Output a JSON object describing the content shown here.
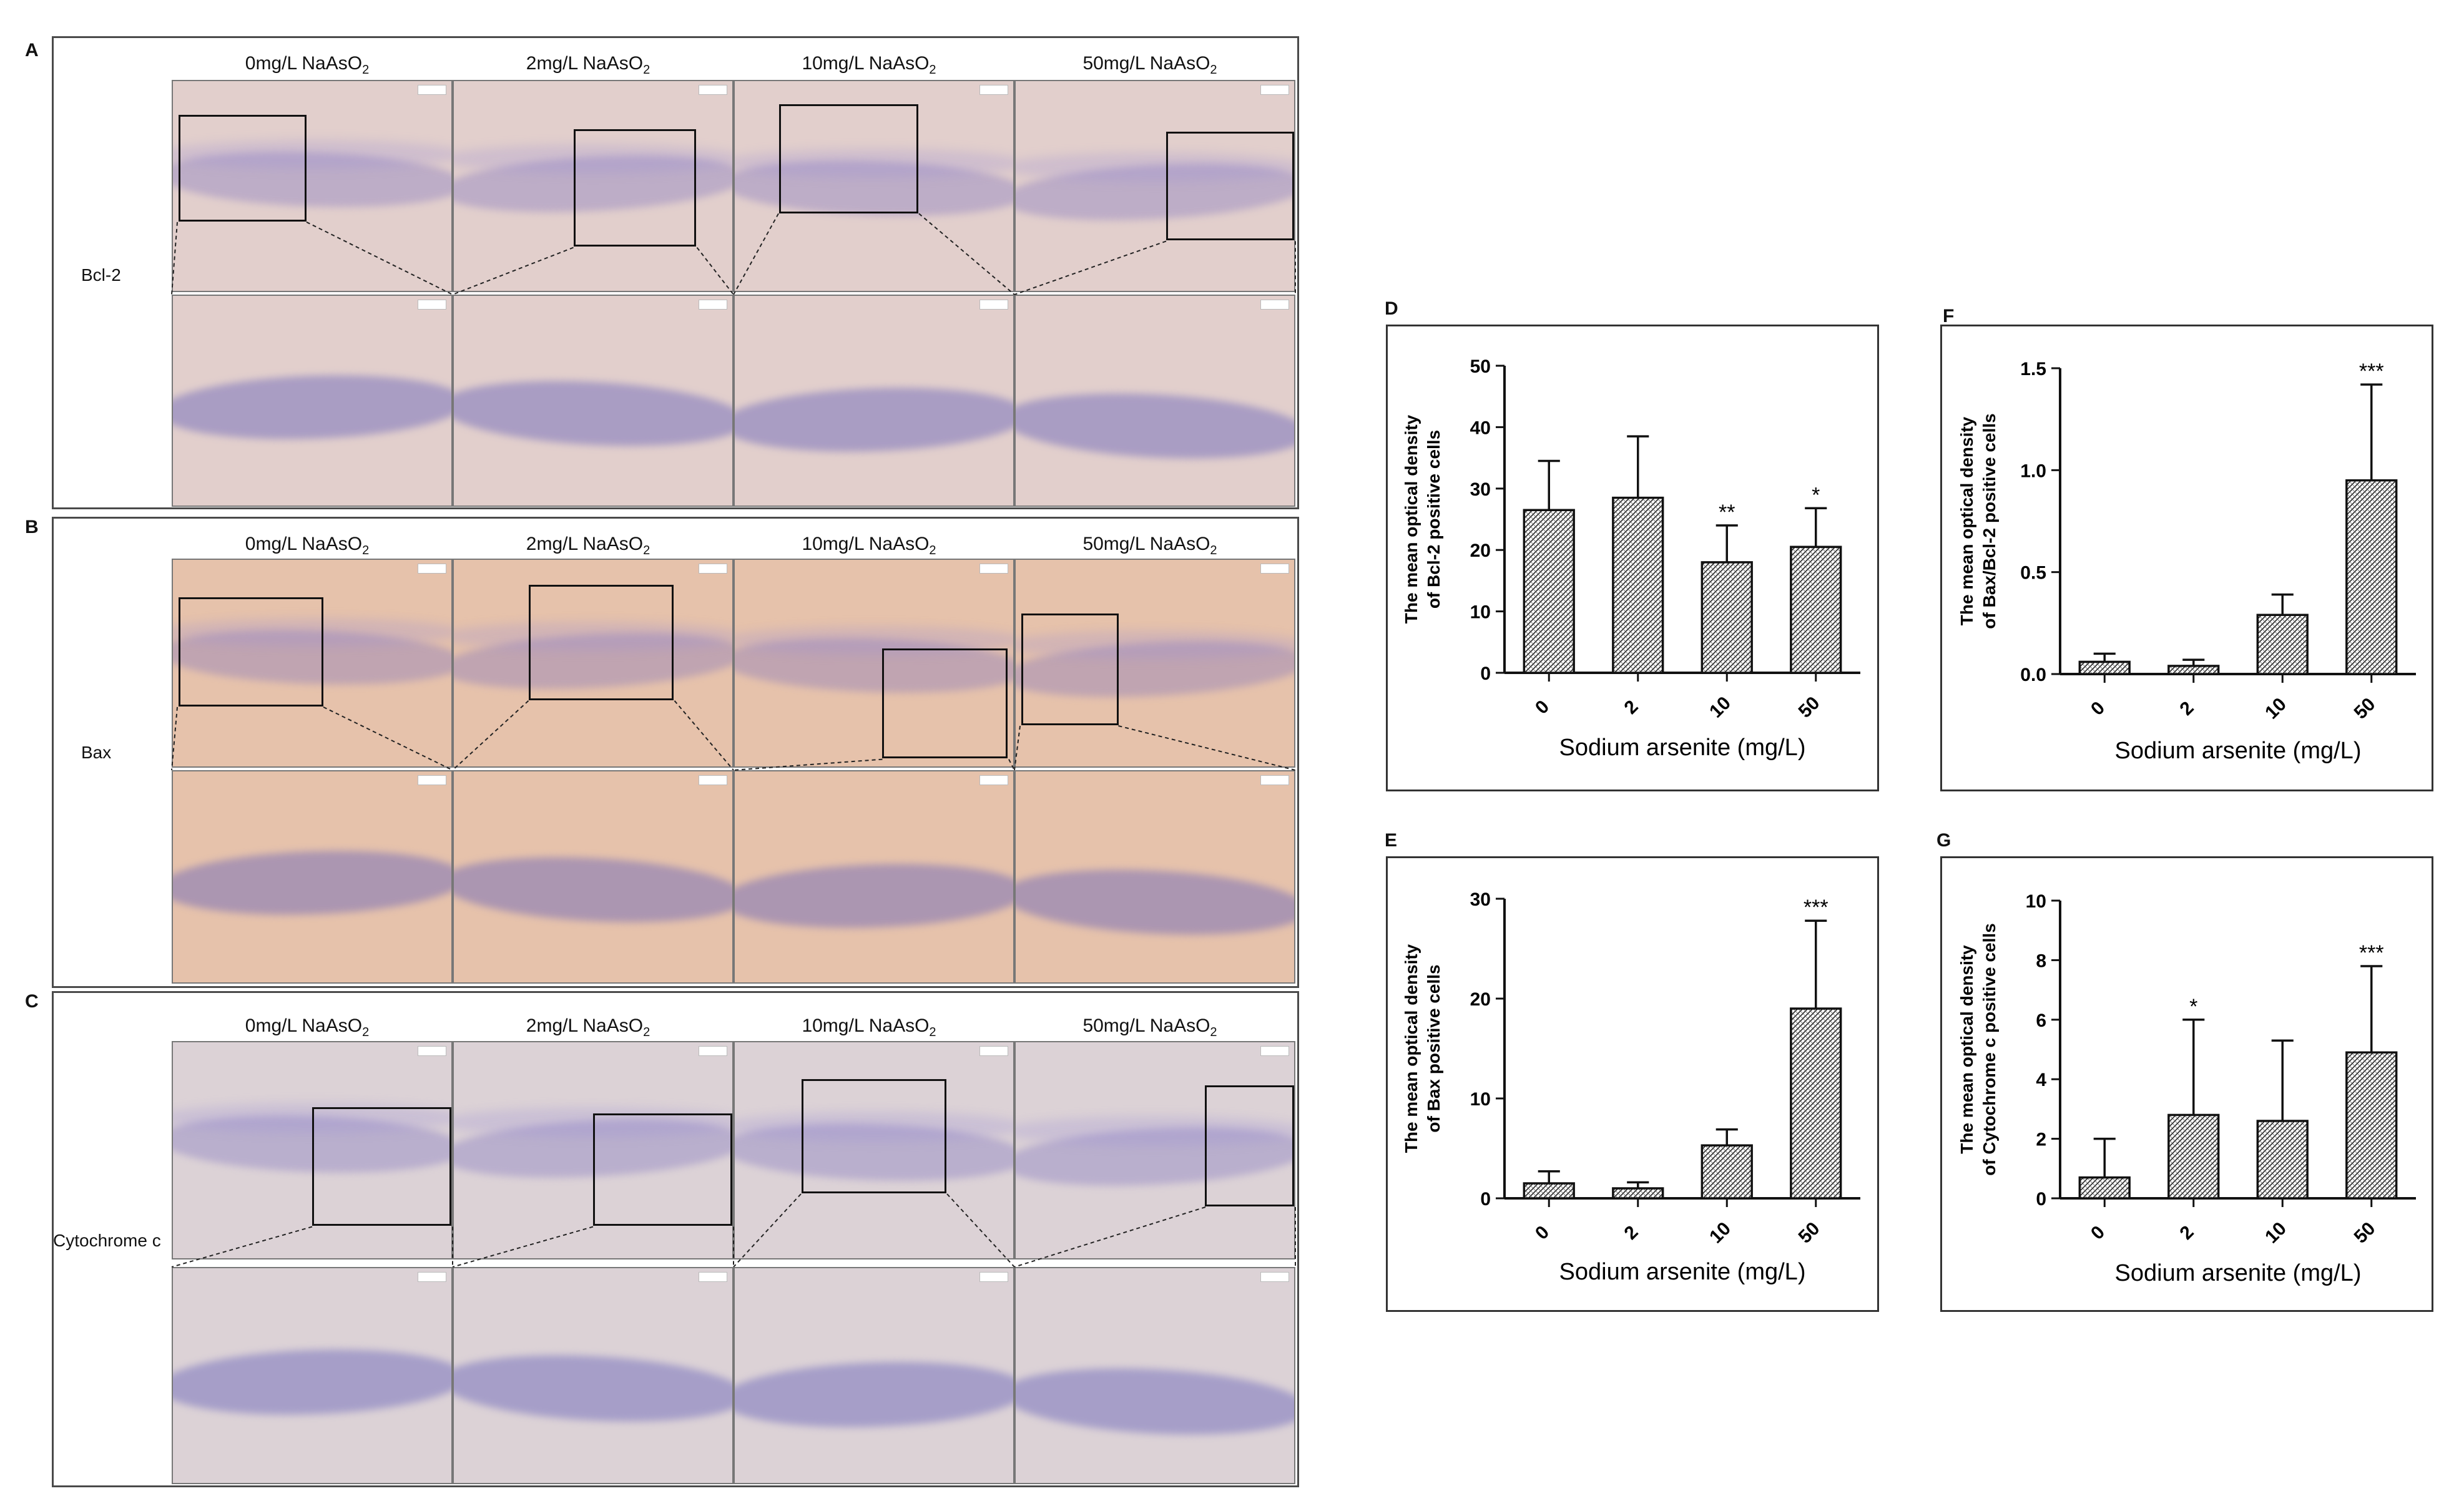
{
  "figure": {
    "panels": {
      "A": "A",
      "B": "B",
      "C": "C",
      "D": "D",
      "E": "E",
      "F": "F",
      "G": "G"
    },
    "column_headers": {
      "c0": {
        "main": "0mg/L NaAsO",
        "sub": "2"
      },
      "c1": {
        "main": "2mg/L NaAsO",
        "sub": "2"
      },
      "c2": {
        "main": "10mg/L NaAsO",
        "sub": "2"
      },
      "c3": {
        "main": "50mg/L NaAsO",
        "sub": "2"
      }
    },
    "row_labels": {
      "A": "Bcl-2",
      "B": "Bax",
      "C": "Cytochrome c"
    },
    "tissue_colors": {
      "A": "#e2cfcc",
      "B": "#e6c2ab",
      "C": "#dcd2d6"
    }
  },
  "chart_data": [
    {
      "panel": "D",
      "type": "bar",
      "categories": [
        "0",
        "2",
        "10",
        "50"
      ],
      "values": [
        26.5,
        28.5,
        18,
        20.5
      ],
      "errors": [
        8,
        10,
        6,
        6.3
      ],
      "annotations": [
        "",
        "",
        "**",
        "*"
      ],
      "ylabel_line1": "The mean optical density",
      "ylabel_line2": "of Bcl-2 positive cells",
      "xlabel": "Sodium arsenite (mg/L)",
      "ylim": [
        0,
        50
      ],
      "yticks": [
        "0",
        "10",
        "20",
        "30",
        "40",
        "50"
      ],
      "ytick_values": [
        0,
        10,
        20,
        30,
        40,
        50
      ]
    },
    {
      "panel": "E",
      "type": "bar",
      "categories": [
        "0",
        "2",
        "10",
        "50"
      ],
      "values": [
        1.5,
        1.0,
        5.3,
        19
      ],
      "errors": [
        1.2,
        0.6,
        1.6,
        8.8
      ],
      "annotations": [
        "",
        "",
        "",
        "***"
      ],
      "ylabel_line1": "The mean optical density",
      "ylabel_line2": "of Bax positive cells",
      "xlabel": "Sodium arsenite (mg/L)",
      "ylim": [
        0,
        30
      ],
      "yticks": [
        "0",
        "10",
        "20",
        "30"
      ],
      "ytick_values": [
        0,
        10,
        20,
        30
      ]
    },
    {
      "panel": "F",
      "type": "bar",
      "categories": [
        "0",
        "2",
        "10",
        "50"
      ],
      "values": [
        0.06,
        0.04,
        0.29,
        0.95
      ],
      "errors": [
        0.04,
        0.03,
        0.1,
        0.47
      ],
      "annotations": [
        "",
        "",
        "",
        "***"
      ],
      "ylabel_line1": "The mean optical density",
      "ylabel_line2": "of Bax/Bcl-2 positive cells",
      "xlabel": "Sodium arsenite (mg/L)",
      "ylim": [
        0,
        1.5
      ],
      "yticks": [
        "0.0",
        "0.5",
        "1.0",
        "1.5"
      ],
      "ytick_values": [
        0,
        0.5,
        1.0,
        1.5
      ]
    },
    {
      "panel": "G",
      "type": "bar",
      "categories": [
        "0",
        "2",
        "10",
        "50"
      ],
      "values": [
        0.7,
        2.8,
        2.6,
        4.9
      ],
      "errors": [
        1.3,
        3.2,
        2.7,
        2.9
      ],
      "annotations": [
        "",
        "*",
        "",
        "***"
      ],
      "ylabel_line1": "The mean optical density",
      "ylabel_line2": "of Cytochrome c positive cells",
      "xlabel": "Sodium arsenite (mg/L)",
      "ylim": [
        0,
        10
      ],
      "yticks": [
        "0",
        "2",
        "4",
        "6",
        "8",
        "10"
      ],
      "ytick_values": [
        0,
        2,
        4,
        6,
        8,
        10
      ]
    }
  ]
}
